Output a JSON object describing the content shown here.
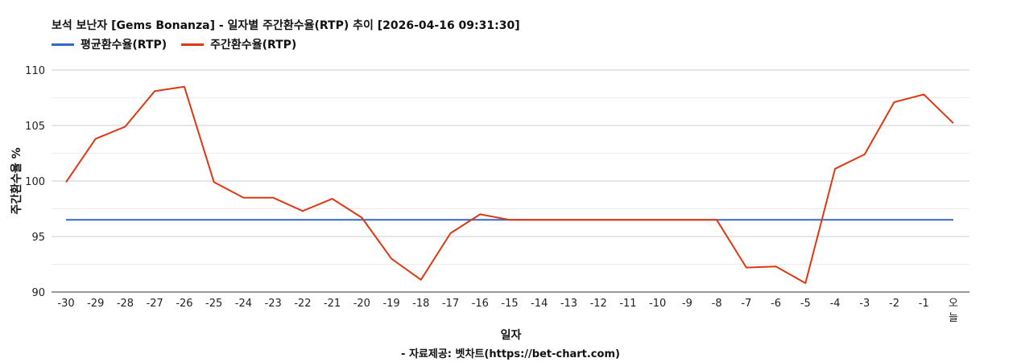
{
  "chart_data": {
    "type": "line",
    "title": "보석 보난자 [Gems Bonanza] - 일자별 주간환수율(RTP) 추이 [2026-04-16 09:31:30]",
    "xlabel": "일자",
    "ylabel": "주간환수율 %",
    "footer": "- 자료제공: 벳차트(https://bet-chart.com)",
    "categories": [
      "-30",
      "-29",
      "-28",
      "-27",
      "-26",
      "-25",
      "-24",
      "-23",
      "-22",
      "-21",
      "-20",
      "-19",
      "-18",
      "-17",
      "-16",
      "-15",
      "-14",
      "-13",
      "-12",
      "-11",
      "-10",
      "-9",
      "-8",
      "-7",
      "-6",
      "-5",
      "-4",
      "-3",
      "-2",
      "-1",
      "오늘"
    ],
    "ylim": [
      90,
      110
    ],
    "yticks": [
      90,
      95,
      100,
      105,
      110
    ],
    "grid": true,
    "legend_position": "top-left",
    "series": [
      {
        "name": "평균환수율(RTP)",
        "color": "#3366cc",
        "values": [
          96.5,
          96.5,
          96.5,
          96.5,
          96.5,
          96.5,
          96.5,
          96.5,
          96.5,
          96.5,
          96.5,
          96.5,
          96.5,
          96.5,
          96.5,
          96.5,
          96.5,
          96.5,
          96.5,
          96.5,
          96.5,
          96.5,
          96.5,
          96.5,
          96.5,
          96.5,
          96.5,
          96.5,
          96.5,
          96.5,
          96.5
        ]
      },
      {
        "name": "주간환수율(RTP)",
        "color": "#dc3912",
        "values": [
          99.9,
          103.8,
          104.9,
          108.1,
          108.5,
          99.9,
          98.5,
          98.5,
          97.3,
          98.4,
          96.7,
          93.0,
          91.1,
          95.3,
          97.0,
          96.5,
          96.5,
          96.5,
          96.5,
          96.5,
          96.5,
          96.5,
          96.5,
          92.2,
          92.3,
          90.8,
          101.1,
          102.4,
          107.1,
          107.8,
          105.2
        ]
      }
    ]
  }
}
